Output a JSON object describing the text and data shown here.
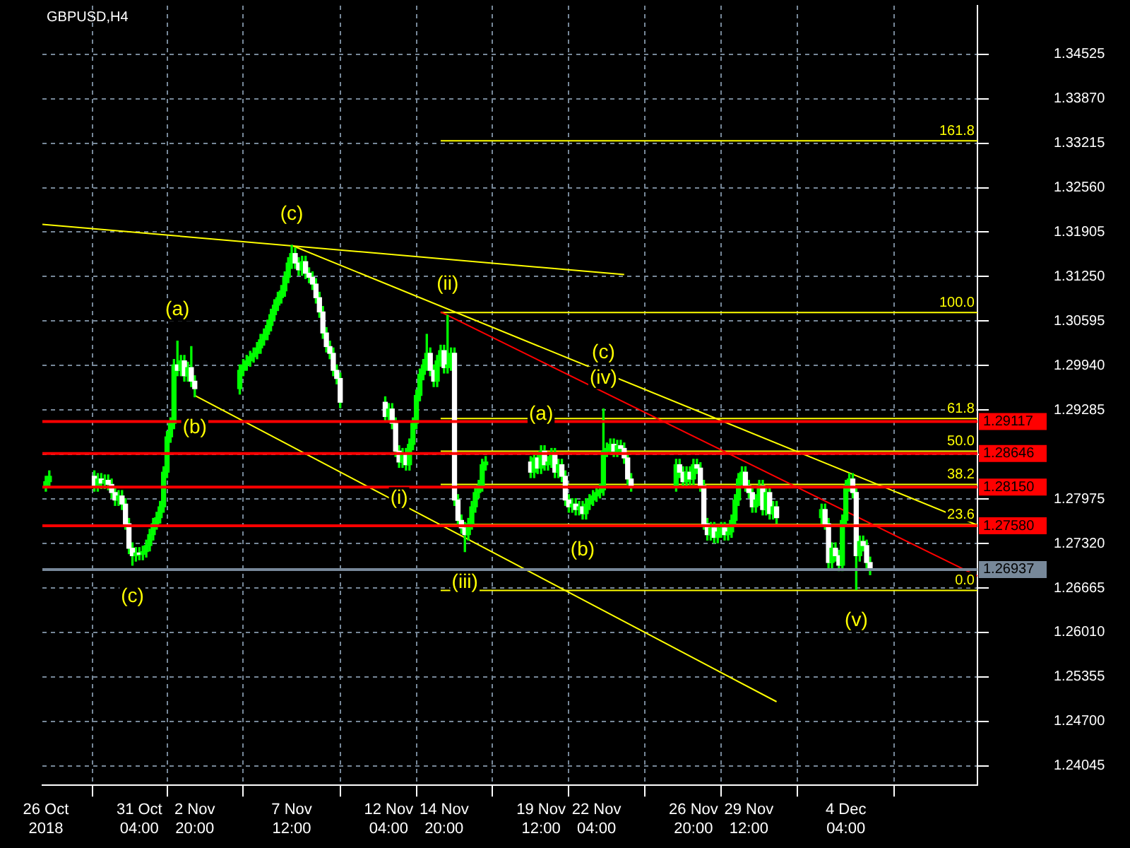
{
  "chart_data": {
    "type": "candlestick",
    "title": "GBPUSD,H4",
    "color": "#00ff00",
    "grid": true,
    "colors": [
      "#00ff00",
      "#00ff00",
      "#ffffff",
      "#00ff00",
      "#ffffff",
      "#00ff00",
      "#ffffff",
      "#ffffff",
      "#ffffff",
      "#00ff00",
      "#ffffff",
      "#ffffff",
      "#ffffff",
      "#ffffff",
      "#00ff00",
      "#ffffff",
      "#00ff00",
      "#00ff00",
      "#00ff00",
      "#00ff00",
      "#00ff00",
      "#00ff00",
      "#00ff00",
      "#00ff00",
      "#00ff00",
      "#00ff00",
      "#ffffff",
      "#00ff00",
      "#ffffff",
      "#00ff00",
      "#ffffff",
      "#ffffff",
      "#00ff00",
      "#00ff00",
      "#00ff00",
      "#00ff00",
      "#00ff00",
      "#00ff00",
      "#00ff00",
      "#00ff00",
      "#00ff00",
      "#00ff00",
      "#00ff00",
      "#00ff00",
      "#00ff00",
      "#00ff00",
      "#00ff00",
      "#00ff00",
      "#ffffff",
      "#ffffff",
      "#00ff00",
      "#ffffff",
      "#ffffff",
      "#ffffff",
      "#ffffff",
      "#ffffff",
      "#ffffff",
      "#ffffff",
      "#ffffff",
      "#ffffff",
      "#ffffff",
      "#ffffff",
      "#ffffff",
      "#00ff00",
      "#ffffff",
      "#ffffff",
      "#ffffff",
      "#00ff00",
      "#ffffff",
      "#00ff00",
      "#00ff00",
      "#00ff00",
      "#00ff00",
      "#00ff00",
      "#00ff00",
      "#ffffff",
      "#ffffff",
      "#00ff00",
      "#00ff00",
      "#ffffff",
      "#00ff00",
      "#00ff00",
      "#ffffff",
      "#ffffff",
      "#ffffff",
      "#ffffff",
      "#00ff00",
      "#00ff00",
      "#00ff00",
      "#00ff00",
      "#00ff00",
      "#00ff00",
      "#ffffff",
      "#00ff00",
      "#ffffff",
      "#00ff00",
      "#ffffff",
      "#00ff00",
      "#00ff00",
      "#ffffff",
      "#00ff00",
      "#ffffff",
      "#ffffff",
      "#ffffff",
      "#00ff00",
      "#ffffff",
      "#00ff00",
      "#ffffff",
      "#00ff00",
      "#00ff00",
      "#00ff00",
      "#00ff00",
      "#00ff00",
      "#00ff00",
      "#00ff00",
      "#00ff00",
      "#ffffff",
      "#00ff00",
      "#ffffff",
      "#ffffff",
      "#ffffff",
      "#ffffff",
      "#00ff00",
      "#ffffff",
      "#ffffff",
      "#00ff00",
      "#ffffff",
      "#00ff00",
      "#ffffff",
      "#ffffff",
      "#ffffff",
      "#ffffff",
      "#00ff00",
      "#ffffff",
      "#00ff00",
      "#00ff00",
      "#ffffff",
      "#00ff00",
      "#00ff00",
      "#00ff00",
      "#00ff00",
      "#00ff00",
      "#ffffff",
      "#ffffff",
      "#ffffff",
      "#00ff00",
      "#00ff00",
      "#ffffff",
      "#00ff00",
      "#ffffff",
      "#00ff00",
      "#ffffff",
      "#00ff00",
      "#ffffff",
      "#ffffff",
      "#00ff00",
      "#ffffff",
      "#ffffff",
      "#00ff00",
      "#00ff00",
      "#00ff00",
      "#ffffff",
      "#ffffff",
      "#00ff00",
      "#ffffff",
      "#ffffff",
      "#ffffff"
    ],
    "x": [
      "2018-10-26T16:00",
      "2018-10-26T20:00",
      "2018-10-29T00:00",
      "2018-10-29T04:00",
      "2018-10-29T08:00",
      "2018-10-29T12:00",
      "2018-10-29T16:00",
      "2018-10-29T20:00",
      "2018-10-30T00:00",
      "2018-10-30T04:00",
      "2018-10-30T08:00",
      "2018-10-30T12:00",
      "2018-10-30T16:00",
      "2018-10-30T20:00",
      "2018-10-31T00:00",
      "2018-10-31T04:00",
      "2018-10-31T08:00",
      "2018-10-31T12:00",
      "2018-10-31T16:00",
      "2018-10-31T20:00",
      "2018-11-01T00:00",
      "2018-11-01T04:00",
      "2018-11-01T08:00",
      "2018-11-01T12:00",
      "2018-11-01T16:00",
      "2018-11-01T20:00",
      "2018-11-02T00:00",
      "2018-11-02T04:00",
      "2018-11-02T08:00",
      "2018-11-02T12:00",
      "2018-11-02T16:00",
      "2018-11-02T20:00",
      "2018-11-05T00:00",
      "2018-11-05T04:00",
      "2018-11-05T08:00",
      "2018-11-05T12:00",
      "2018-11-05T16:00",
      "2018-11-05T20:00",
      "2018-11-06T00:00",
      "2018-11-06T04:00",
      "2018-11-06T08:00",
      "2018-11-06T12:00",
      "2018-11-06T16:00",
      "2018-11-06T20:00",
      "2018-11-07T00:00",
      "2018-11-07T04:00",
      "2018-11-07T08:00",
      "2018-11-07T12:00",
      "2018-11-07T16:00",
      "2018-11-07T20:00",
      "2018-11-08T00:00",
      "2018-11-08T04:00",
      "2018-11-08T08:00",
      "2018-11-08T12:00",
      "2018-11-08T16:00",
      "2018-11-08T20:00",
      "2018-11-09T00:00",
      "2018-11-09T04:00",
      "2018-11-09T08:00",
      "2018-11-09T12:00",
      "2018-11-09T16:00",
      "2018-11-09T20:00",
      "2018-11-12T00:00",
      "2018-11-12T04:00",
      "2018-11-12T08:00",
      "2018-11-12T12:00",
      "2018-11-12T16:00",
      "2018-11-12T20:00",
      "2018-11-13T00:00",
      "2018-11-13T04:00",
      "2018-11-13T08:00",
      "2018-11-13T12:00",
      "2018-11-13T16:00",
      "2018-11-13T20:00",
      "2018-11-14T00:00",
      "2018-11-14T04:00",
      "2018-11-14T08:00",
      "2018-11-14T12:00",
      "2018-11-14T16:00",
      "2018-11-14T20:00",
      "2018-11-15T00:00",
      "2018-11-15T04:00",
      "2018-11-15T08:00",
      "2018-11-15T12:00",
      "2018-11-15T16:00",
      "2018-11-15T20:00",
      "2018-11-16T00:00",
      "2018-11-16T04:00",
      "2018-11-16T08:00",
      "2018-11-16T12:00",
      "2018-11-16T16:00",
      "2018-11-16T20:00",
      "2018-11-19T00:00",
      "2018-11-19T04:00",
      "2018-11-19T08:00",
      "2018-11-19T12:00",
      "2018-11-19T16:00",
      "2018-11-19T20:00",
      "2018-11-20T00:00",
      "2018-11-20T04:00",
      "2018-11-20T08:00",
      "2018-11-20T12:00",
      "2018-11-20T16:00",
      "2018-11-20T20:00",
      "2018-11-21T00:00",
      "2018-11-21T04:00",
      "2018-11-21T08:00",
      "2018-11-21T12:00",
      "2018-11-21T16:00",
      "2018-11-21T20:00",
      "2018-11-22T00:00",
      "2018-11-22T04:00",
      "2018-11-22T08:00",
      "2018-11-22T12:00",
      "2018-11-22T16:00",
      "2018-11-22T20:00",
      "2018-11-23T00:00",
      "2018-11-23T04:00",
      "2018-11-23T08:00",
      "2018-11-23T12:00",
      "2018-11-23T16:00",
      "2018-11-23T20:00",
      "2018-11-26T00:00",
      "2018-11-26T04:00",
      "2018-11-26T08:00",
      "2018-11-26T12:00",
      "2018-11-26T16:00",
      "2018-11-26T20:00",
      "2018-11-27T00:00",
      "2018-11-27T04:00",
      "2018-11-27T08:00",
      "2018-11-27T12:00",
      "2018-11-27T16:00",
      "2018-11-27T20:00",
      "2018-11-28T00:00",
      "2018-11-28T04:00",
      "2018-11-28T08:00",
      "2018-11-28T12:00",
      "2018-11-28T16:00",
      "2018-11-28T20:00",
      "2018-11-29T00:00",
      "2018-11-29T04:00",
      "2018-11-29T08:00",
      "2018-11-29T12:00",
      "2018-11-29T16:00",
      "2018-11-29T20:00",
      "2018-11-30T00:00",
      "2018-11-30T04:00",
      "2018-11-30T08:00",
      "2018-11-30T12:00",
      "2018-11-30T16:00",
      "2018-11-30T20:00",
      "2018-12-03T00:00",
      "2018-12-03T04:00",
      "2018-12-03T08:00",
      "2018-12-03T12:00",
      "2018-12-03T16:00",
      "2018-12-03T20:00",
      "2018-12-04T00:00",
      "2018-12-04T04:00",
      "2018-12-04T08:00",
      "2018-12-04T12:00",
      "2018-12-04T16:00",
      "2018-12-04T20:00",
      "2018-12-05T00:00",
      "2018-12-05T04:00",
      "2018-12-05T08:00"
    ],
    "ohlc": [
      [
        1.2817,
        1.2831,
        1.2809,
        1.2823
      ],
      [
        1.2823,
        1.2839,
        1.2815,
        1.2831
      ],
      [
        1.2831,
        1.2839,
        1.2809,
        1.2817
      ],
      [
        1.2817,
        1.2835,
        1.2809,
        1.2827
      ],
      [
        1.2827,
        1.2835,
        1.2813,
        1.2821
      ],
      [
        1.2821,
        1.2833,
        1.2813,
        1.2825
      ],
      [
        1.2825,
        1.2833,
        1.2811,
        1.2819
      ],
      [
        1.2819,
        1.2827,
        1.2799,
        1.2807
      ],
      [
        1.2807,
        1.2815,
        1.2788,
        1.2796
      ],
      [
        1.2796,
        1.281,
        1.2788,
        1.2802
      ],
      [
        1.2802,
        1.281,
        1.2782,
        1.279
      ],
      [
        1.279,
        1.2798,
        1.2753,
        1.2761
      ],
      [
        1.2761,
        1.2769,
        1.2717,
        1.2725
      ],
      [
        1.2725,
        1.2733,
        1.27,
        1.2714
      ],
      [
        1.2714,
        1.2726,
        1.2706,
        1.2718
      ],
      [
        1.2718,
        1.2726,
        1.2708,
        1.2716
      ],
      [
        1.2716,
        1.2728,
        1.2708,
        1.272
      ],
      [
        1.272,
        1.2737,
        1.2712,
        1.2729
      ],
      [
        1.2729,
        1.2753,
        1.2721,
        1.2745
      ],
      [
        1.2745,
        1.2769,
        1.2737,
        1.2761
      ],
      [
        1.2761,
        1.2778,
        1.2753,
        1.277
      ],
      [
        1.277,
        1.2794,
        1.2762,
        1.2786
      ],
      [
        1.2786,
        1.2845,
        1.2778,
        1.2837
      ],
      [
        1.2837,
        1.2897,
        1.2829,
        1.2889
      ],
      [
        1.2889,
        1.2917,
        1.2881,
        1.2909
      ],
      [
        1.2909,
        1.3003,
        1.2901,
        1.2995
      ],
      [
        1.2995,
        1.303,
        1.2979,
        1.2987
      ],
      [
        1.2987,
        1.3009,
        1.2979,
        1.3001
      ],
      [
        1.3001,
        1.3009,
        1.2971,
        1.2979
      ],
      [
        1.2979,
        1.2999,
        1.2971,
        1.2991
      ],
      [
        1.2991,
        1.3022,
        1.2963,
        1.2971
      ],
      [
        1.2971,
        1.2979,
        1.2948,
        1.296
      ],
      [
        1.296,
        1.2995,
        1.2952,
        1.2987
      ],
      [
        1.2987,
        1.3003,
        1.2979,
        1.2995
      ],
      [
        1.2995,
        1.3009,
        1.2987,
        1.3001
      ],
      [
        1.3001,
        1.3015,
        1.2993,
        1.3007
      ],
      [
        1.3007,
        1.302,
        1.2999,
        1.3012
      ],
      [
        1.3012,
        1.3028,
        1.3004,
        1.302
      ],
      [
        1.302,
        1.304,
        1.3012,
        1.3032
      ],
      [
        1.3032,
        1.3048,
        1.3024,
        1.304
      ],
      [
        1.304,
        1.3061,
        1.3032,
        1.3053
      ],
      [
        1.3053,
        1.3077,
        1.3045,
        1.3069
      ],
      [
        1.3069,
        1.3091,
        1.3061,
        1.3083
      ],
      [
        1.3083,
        1.3102,
        1.3075,
        1.3094
      ],
      [
        1.3094,
        1.3112,
        1.3086,
        1.3104
      ],
      [
        1.3104,
        1.3132,
        1.3096,
        1.3124
      ],
      [
        1.3124,
        1.3153,
        1.3116,
        1.3145
      ],
      [
        1.3145,
        1.3171,
        1.3137,
        1.3159
      ],
      [
        1.3159,
        1.3167,
        1.3137,
        1.3145
      ],
      [
        1.3145,
        1.3153,
        1.3127,
        1.3135
      ],
      [
        1.3135,
        1.3155,
        1.3127,
        1.3147
      ],
      [
        1.3147,
        1.3155,
        1.3122,
        1.313
      ],
      [
        1.313,
        1.3138,
        1.3116,
        1.3124
      ],
      [
        1.3124,
        1.3132,
        1.3106,
        1.3114
      ],
      [
        1.3114,
        1.3122,
        1.3086,
        1.3094
      ],
      [
        1.3094,
        1.3102,
        1.3065,
        1.3073
      ],
      [
        1.3073,
        1.3081,
        1.3034,
        1.3042
      ],
      [
        1.3042,
        1.305,
        1.3014,
        1.3022
      ],
      [
        1.3022,
        1.303,
        1.3004,
        1.3012
      ],
      [
        1.3012,
        1.302,
        1.2979,
        1.2987
      ],
      [
        1.2987,
        1.2995,
        1.2967,
        1.2975
      ],
      [
        1.2975,
        1.2983,
        1.2932,
        1.294
      ],
      [
        1.294,
        1.2948,
        1.2911,
        1.2919
      ],
      [
        1.2919,
        1.2938,
        1.2911,
        1.293
      ],
      [
        1.293,
        1.2938,
        1.2901,
        1.2909
      ],
      [
        1.2909,
        1.2917,
        1.286,
        1.2868
      ],
      [
        1.2868,
        1.2876,
        1.2844,
        1.2852
      ],
      [
        1.2852,
        1.2872,
        1.2844,
        1.2864
      ],
      [
        1.2864,
        1.2872,
        1.284,
        1.2848
      ],
      [
        1.2848,
        1.2886,
        1.284,
        1.2878
      ],
      [
        1.2878,
        1.2917,
        1.287,
        1.2909
      ],
      [
        1.2909,
        1.2958,
        1.2901,
        1.295
      ],
      [
        1.295,
        1.2989,
        1.2942,
        1.2981
      ],
      [
        1.2981,
        1.3003,
        1.2973,
        1.2995
      ],
      [
        1.2995,
        1.304,
        1.2987,
        1.3012
      ],
      [
        1.3012,
        1.302,
        1.2979,
        1.2987
      ],
      [
        1.2987,
        1.2995,
        1.2963,
        1.2971
      ],
      [
        1.2971,
        1.3009,
        1.2963,
        1.3001
      ],
      [
        1.3001,
        1.3024,
        1.2993,
        1.3016
      ],
      [
        1.3016,
        1.3024,
        1.2983,
        1.2991
      ],
      [
        1.2991,
        1.3068,
        1.2983,
        1.2995
      ],
      [
        1.2995,
        1.302,
        1.2987,
        1.3012
      ],
      [
        1.3012,
        1.302,
        1.2788,
        1.2796
      ],
      [
        1.2796,
        1.2804,
        1.2758,
        1.2766
      ],
      [
        1.2766,
        1.2774,
        1.2747,
        1.2755
      ],
      [
        1.2755,
        1.2763,
        1.272,
        1.2745
      ],
      [
        1.2745,
        1.2769,
        1.2737,
        1.2761
      ],
      [
        1.2761,
        1.2794,
        1.2753,
        1.2786
      ],
      [
        1.2786,
        1.2815,
        1.2778,
        1.2807
      ],
      [
        1.2807,
        1.2825,
        1.2799,
        1.2817
      ],
      [
        1.2817,
        1.2856,
        1.2809,
        1.2848
      ],
      [
        1.2848,
        1.286,
        1.284,
        1.2852
      ],
      [
        1.2852,
        1.286,
        1.2829,
        1.2837
      ],
      [
        1.2837,
        1.2866,
        1.2829,
        1.2858
      ],
      [
        1.2858,
        1.2866,
        1.2835,
        1.2843
      ],
      [
        1.2843,
        1.2876,
        1.2835,
        1.2868
      ],
      [
        1.2868,
        1.2876,
        1.284,
        1.2848
      ],
      [
        1.2848,
        1.286,
        1.284,
        1.2852
      ],
      [
        1.2852,
        1.2872,
        1.2844,
        1.2864
      ],
      [
        1.2864,
        1.2872,
        1.2829,
        1.2837
      ],
      [
        1.2837,
        1.2856,
        1.2829,
        1.2848
      ],
      [
        1.2848,
        1.2856,
        1.2823,
        1.2831
      ],
      [
        1.2831,
        1.2839,
        1.2788,
        1.2796
      ],
      [
        1.2796,
        1.2804,
        1.2778,
        1.2786
      ],
      [
        1.2786,
        1.2798,
        1.2778,
        1.279
      ],
      [
        1.279,
        1.2798,
        1.2774,
        1.2782
      ],
      [
        1.2782,
        1.2794,
        1.2774,
        1.2786
      ],
      [
        1.2786,
        1.2794,
        1.2768,
        1.2776
      ],
      [
        1.2776,
        1.2798,
        1.2768,
        1.279
      ],
      [
        1.279,
        1.2804,
        1.2782,
        1.2796
      ],
      [
        1.2796,
        1.281,
        1.2788,
        1.2802
      ],
      [
        1.2802,
        1.2815,
        1.2794,
        1.2807
      ],
      [
        1.2807,
        1.2819,
        1.2799,
        1.2811
      ],
      [
        1.2811,
        1.293,
        1.2803,
        1.2868
      ],
      [
        1.2868,
        1.288,
        1.286,
        1.2872
      ],
      [
        1.2872,
        1.2886,
        1.2864,
        1.2878
      ],
      [
        1.2878,
        1.2886,
        1.286,
        1.2868
      ],
      [
        1.2868,
        1.2884,
        1.286,
        1.2876
      ],
      [
        1.2876,
        1.2884,
        1.2864,
        1.2872
      ],
      [
        1.2872,
        1.288,
        1.285,
        1.2858
      ],
      [
        1.2858,
        1.2866,
        1.2819,
        1.2827
      ],
      [
        1.2827,
        1.2835,
        1.2809,
        1.2817
      ],
      [
        1.2817,
        1.2856,
        1.2809,
        1.2848
      ],
      [
        1.2848,
        1.2856,
        1.2829,
        1.2837
      ],
      [
        1.2837,
        1.2845,
        1.2815,
        1.2823
      ],
      [
        1.2823,
        1.2845,
        1.2815,
        1.2837
      ],
      [
        1.2837,
        1.2845,
        1.2819,
        1.2827
      ],
      [
        1.2827,
        1.2856,
        1.2819,
        1.2848
      ],
      [
        1.2848,
        1.2856,
        1.2835,
        1.2843
      ],
      [
        1.2843,
        1.2851,
        1.2809,
        1.2817
      ],
      [
        1.2817,
        1.2825,
        1.2753,
        1.2761
      ],
      [
        1.2761,
        1.2769,
        1.2737,
        1.2745
      ],
      [
        1.2745,
        1.2763,
        1.2737,
        1.2755
      ],
      [
        1.2755,
        1.2763,
        1.2733,
        1.2741
      ],
      [
        1.2741,
        1.2757,
        1.2733,
        1.2749
      ],
      [
        1.2749,
        1.2763,
        1.2741,
        1.2755
      ],
      [
        1.2755,
        1.2763,
        1.2737,
        1.2745
      ],
      [
        1.2745,
        1.2757,
        1.2737,
        1.2749
      ],
      [
        1.2749,
        1.2774,
        1.2741,
        1.2766
      ],
      [
        1.2766,
        1.2804,
        1.2758,
        1.2796
      ],
      [
        1.2796,
        1.2835,
        1.2788,
        1.2827
      ],
      [
        1.2827,
        1.2845,
        1.2819,
        1.2837
      ],
      [
        1.2837,
        1.2845,
        1.2809,
        1.2817
      ],
      [
        1.2817,
        1.2825,
        1.2799,
        1.2807
      ],
      [
        1.2807,
        1.2815,
        1.2778,
        1.2786
      ],
      [
        1.2786,
        1.2804,
        1.2778,
        1.2796
      ],
      [
        1.2796,
        1.2825,
        1.2788,
        1.2817
      ],
      [
        1.2817,
        1.2825,
        1.2774,
        1.2782
      ],
      [
        1.2782,
        1.2815,
        1.2774,
        1.2807
      ],
      [
        1.2807,
        1.2815,
        1.2768,
        1.2776
      ],
      [
        1.2776,
        1.2794,
        1.2768,
        1.2786
      ],
      [
        1.2786,
        1.2794,
        1.2762,
        1.277
      ],
      [
        1.277,
        1.279,
        1.2762,
        1.2782
      ],
      [
        1.2782,
        1.279,
        1.2753,
        1.2761
      ],
      [
        1.2761,
        1.2769,
        1.2696,
        1.2704
      ],
      [
        1.2704,
        1.2733,
        1.2696,
        1.2725
      ],
      [
        1.2725,
        1.2733,
        1.2706,
        1.2714
      ],
      [
        1.2714,
        1.2722,
        1.2692,
        1.27
      ],
      [
        1.27,
        1.2774,
        1.2692,
        1.2766
      ],
      [
        1.2766,
        1.2825,
        1.2758,
        1.2817
      ],
      [
        1.2817,
        1.2835,
        1.2809,
        1.2827
      ],
      [
        1.2827,
        1.2835,
        1.2799,
        1.2807
      ],
      [
        1.2807,
        1.2815,
        1.2664,
        1.2714
      ],
      [
        1.2714,
        1.2743,
        1.2706,
        1.2735
      ],
      [
        1.2735,
        1.2743,
        1.2721,
        1.2729
      ],
      [
        1.2729,
        1.2737,
        1.2696,
        1.2704
      ],
      [
        1.2704,
        1.2712,
        1.2686,
        1.2694
      ]
    ],
    "series": [
      {
        "type": "line",
        "color": "#ffff00",
        "x": [
          "2018-10-26T12:00",
          "2018-11-23T12:00"
        ],
        "values": [
          1.3202,
          1.3128
        ]
      },
      {
        "type": "line",
        "color": "#ffff00",
        "x": [
          "2018-11-07T12:00",
          "2018-12-10T12:00"
        ],
        "values": [
          1.3171,
          1.2759
        ]
      },
      {
        "type": "line",
        "color": "#ffff00",
        "x": [
          "2018-11-02T20:00",
          "2018-11-30T20:00"
        ],
        "values": [
          1.295,
          1.2499
        ]
      },
      {
        "type": "line",
        "color": "#ff0000",
        "x": [
          "2018-11-14T16:00",
          "2018-12-10T12:00"
        ],
        "values": [
          1.3073,
          1.2684
        ]
      },
      {
        "type": "line",
        "name": "161.8",
        "color": "#ffff00",
        "x": [
          "2018-11-14T16:00",
          "2018-12-10T12:00"
        ],
        "values": [
          1.3325,
          1.3325
        ]
      },
      {
        "type": "line",
        "name": "100.0",
        "color": "#ffff00",
        "x": [
          "2018-11-14T16:00",
          "2018-12-10T12:00"
        ],
        "values": [
          1.3072,
          1.3072
        ]
      },
      {
        "type": "line",
        "name": "61.8",
        "color": "#ffff00",
        "x": [
          "2018-11-14T16:00",
          "2018-12-10T12:00"
        ],
        "values": [
          1.2916,
          1.2916
        ]
      },
      {
        "type": "line",
        "name": "50.0",
        "color": "#ffff00",
        "x": [
          "2018-11-14T16:00",
          "2018-12-10T12:00"
        ],
        "values": [
          1.2868,
          1.2868
        ]
      },
      {
        "type": "line",
        "name": "38.2",
        "color": "#ffff00",
        "x": [
          "2018-11-14T16:00",
          "2018-12-10T12:00"
        ],
        "values": [
          1.2819,
          1.2819
        ]
      },
      {
        "type": "line",
        "name": "23.6",
        "color": "#ffff00",
        "x": [
          "2018-11-14T16:00",
          "2018-12-10T12:00"
        ],
        "values": [
          1.276,
          1.276
        ]
      },
      {
        "type": "line",
        "name": "0.0",
        "color": "#ffff00",
        "x": [
          "2018-11-14T16:00",
          "2018-12-10T12:00"
        ],
        "values": [
          1.2663,
          1.2663
        ]
      }
    ],
    "ref_lines": [
      {
        "axis": "y",
        "value": 1.29117,
        "label": "1.29117",
        "color": "#ff0000"
      },
      {
        "axis": "y",
        "value": 1.28646,
        "label": "1.28646",
        "color": "#ff0000"
      },
      {
        "axis": "y",
        "value": 1.2815,
        "label": "1.28150",
        "color": "#ff0000"
      },
      {
        "axis": "y",
        "value": 1.2758,
        "label": "1.27580",
        "color": "#ff0000"
      },
      {
        "axis": "y",
        "value": 1.26937,
        "label": "1.26937",
        "color": "#778899"
      }
    ],
    "annotations": [
      {
        "text": "(c)",
        "x": "2018-10-30T20:00",
        "y": 1.27
      },
      {
        "text": "(a)",
        "x": "2018-11-02T00:00",
        "y": 1.303
      },
      {
        "text": "(b)",
        "x": "2018-11-02T20:00",
        "y": 1.2948
      },
      {
        "text": "(c)",
        "x": "2018-11-07T12:00",
        "y": 1.3171
      },
      {
        "text": "(i)",
        "x": "2018-11-12T16:00",
        "y": 1.2844
      },
      {
        "text": "(ii)",
        "x": "2018-11-15T00:00",
        "y": 1.3068
      },
      {
        "text": "(iii)",
        "x": "2018-11-15T20:00",
        "y": 1.272
      },
      {
        "text": "(a)",
        "x": "2018-11-19T12:00",
        "y": 1.2876
      },
      {
        "text": "(b)",
        "x": "2018-11-21T12:00",
        "y": 1.2768
      },
      {
        "text": "(iv)",
        "x": "2018-11-22T12:00",
        "y": 1.293
      },
      {
        "text": "(c)",
        "x": "2018-11-22T12:00",
        "y": 1.293
      },
      {
        "text": "(v)",
        "x": "2018-12-04T16:00",
        "y": 1.2664
      }
    ],
    "xlim": [
      "2018-10-26T12:00",
      "2018-12-10T12:00"
    ],
    "xticks": [
      {
        "value": "2018-10-26T16:00",
        "label": "26 Oct 2018"
      },
      {
        "value": "2018-10-31T04:00",
        "label": "31 Oct 04:00"
      },
      {
        "value": "2018-11-02T20:00",
        "label": "2 Nov 20:00"
      },
      {
        "value": "2018-11-07T12:00",
        "label": "7 Nov 12:00"
      },
      {
        "value": "2018-11-12T04:00",
        "label": "12 Nov 04:00"
      },
      {
        "value": "2018-11-14T20:00",
        "label": "14 Nov 20:00"
      },
      {
        "value": "2018-11-19T12:00",
        "label": "19 Nov 12:00"
      },
      {
        "value": "2018-11-22T04:00",
        "label": "22 Nov 04:00"
      },
      {
        "value": "2018-11-26T20:00",
        "label": "26 Nov 20:00"
      },
      {
        "value": "2018-11-29T12:00",
        "label": "29 Nov 12:00"
      },
      {
        "value": "2018-12-04T04:00",
        "label": "4 Dec 04:00"
      }
    ],
    "ylim": [
      1.2376,
      1.3524
    ],
    "yticks": [
      1.34525,
      {
        "value": 1.3387,
        "label": "1.33870"
      },
      1.33215,
      {
        "value": 1.3256,
        "label": "1.32560"
      },
      1.31905,
      {
        "value": 1.3125,
        "label": "1.31250"
      },
      1.30595,
      {
        "value": 1.2994,
        "label": "1.29940"
      },
      1.29285,
      {
        "value": 1.2863,
        "label": null
      },
      1.27975,
      {
        "value": 1.2732,
        "label": "1.27320"
      },
      1.26665,
      {
        "value": 1.2601,
        "label": "1.26010"
      },
      1.25355,
      {
        "value": 1.247,
        "label": "1.24700"
      },
      1.24045
    ]
  }
}
